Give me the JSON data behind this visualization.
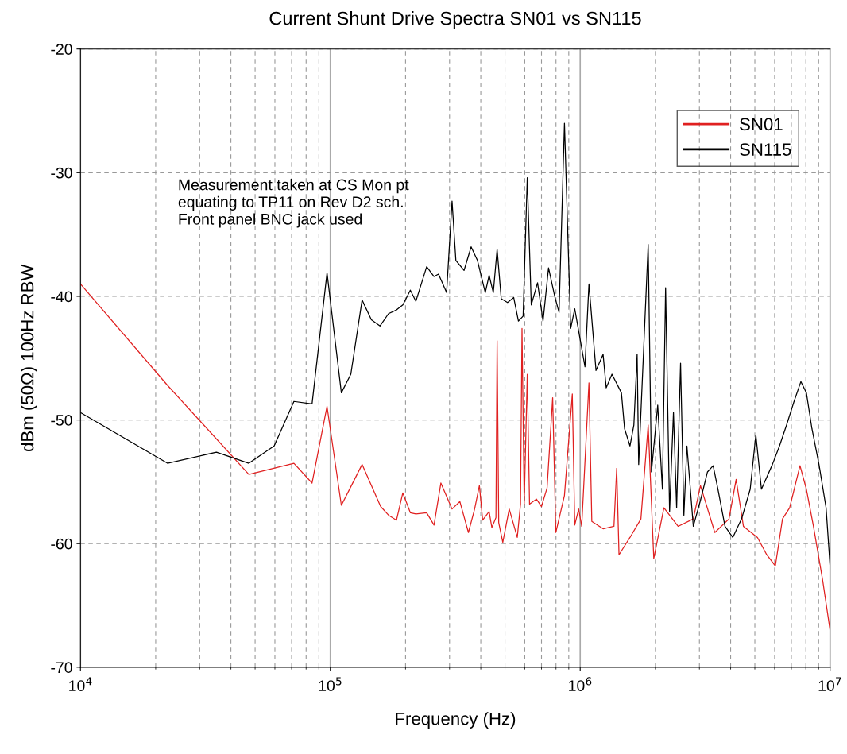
{
  "chart_data": {
    "type": "line",
    "title": "Current Shunt Drive Spectra SN01 vs SN115",
    "xlabel": "Frequency (Hz)",
    "ylabel": "dBm (50Ω) 100Hz RBW",
    "log": "x",
    "grid": true,
    "legend": "top right",
    "line_style": "solid",
    "marker": "none",
    "xlim": [
      10000,
      10000000
    ],
    "xticks": [
      {
        "value": 10000,
        "label": "10$^{4}$"
      },
      {
        "value": 100000,
        "label": "10$^{5}$"
      },
      {
        "value": 1000000,
        "label": "10$^{6}$"
      },
      {
        "value": 10000000,
        "label": "10$^{7}$"
      }
    ],
    "ylim": [
      -70,
      -20
    ],
    "yticks": [
      -70,
      -60,
      -50,
      -40,
      -30,
      -20
    ],
    "annotations": [
      "Measurement taken at CS Mon pt\nequating to TP11 on Rev D2 sch.\nFront panel BNC jack used"
    ],
    "series": [
      {
        "name": "SN01",
        "color": "#e02020",
        "x": [
          10000,
          22300,
          47200,
          71500,
          84500,
          97000,
          110700,
          120800,
          134000,
          159000,
          171000,
          184000,
          195000,
          209000,
          220000,
          243000,
          260000,
          277000,
          307000,
          330000,
          357000,
          378000,
          395000,
          407000,
          432000,
          443000,
          460000,
          465000,
          472000,
          490000,
          520000,
          560000,
          577000,
          585000,
          597000,
          614000,
          627000,
          668000,
          700000,
          737000,
          776000,
          799000,
          865000,
          930000,
          951000,
          986000,
          1014000,
          1084000,
          1113000,
          1235000,
          1365000,
          1400000,
          1430000,
          1582000,
          1750000,
          1871000,
          1970000,
          2163000,
          2465000,
          2836000,
          3029000,
          3458000,
          3940000,
          4208000,
          4500000,
          5123000,
          5580000,
          6040000,
          6450000,
          6890000,
          7580000,
          8040000,
          8580000,
          9330000,
          10000000
        ],
        "values": [
          -39.0,
          -47.2,
          -54.4,
          -53.5,
          -55.1,
          -48.9,
          -56.9,
          -55.4,
          -53.6,
          -57.0,
          -57.7,
          -58.1,
          -55.9,
          -57.5,
          -57.6,
          -57.5,
          -58.5,
          -55.1,
          -57.2,
          -56.6,
          -59.1,
          -57.2,
          -55.3,
          -58.1,
          -57.4,
          -58.7,
          -57.9,
          -43.6,
          -58.3,
          -59.9,
          -57.2,
          -59.5,
          -56.8,
          -42.6,
          -56.8,
          -46.3,
          -56.8,
          -56.4,
          -57.0,
          -55.5,
          -48.2,
          -59.1,
          -56.1,
          -47.9,
          -58.5,
          -57.2,
          -58.6,
          -47.0,
          -58.2,
          -58.8,
          -58.6,
          -53.9,
          -60.9,
          -59.5,
          -58.0,
          -50.4,
          -61.2,
          -57.1,
          -58.6,
          -58.0,
          -55.3,
          -59.1,
          -58.0,
          -54.8,
          -58.6,
          -59.5,
          -60.9,
          -61.8,
          -58.0,
          -57.1,
          -53.7,
          -55.6,
          -58.6,
          -62.9,
          -67.0
        ]
      },
      {
        "name": "SN115",
        "color": "#000000",
        "x": [
          10000,
          22300,
          35000,
          47200,
          59600,
          71500,
          84500,
          97000,
          110700,
          120800,
          134000,
          146000,
          158000,
          171000,
          184000,
          195000,
          209000,
          220000,
          243000,
          260000,
          271000,
          292000,
          307000,
          318000,
          343000,
          366000,
          388000,
          417000,
          432000,
          449000,
          465000,
          483000,
          512000,
          542000,
          566000,
          591000,
          614000,
          637000,
          675000,
          710000,
          747000,
          793000,
          823000,
          865000,
          916000,
          951000,
          1045000,
          1084000,
          1157000,
          1235000,
          1271000,
          1340000,
          1462000,
          1505000,
          1582000,
          1640000,
          1690000,
          1714000,
          1871000,
          1928000,
          2043000,
          2133000,
          2197000,
          2279000,
          2362000,
          2432000,
          2522000,
          2600000,
          2674000,
          2836000,
          3029000,
          3232000,
          3405000,
          3558000,
          3797000,
          4080000,
          4424000,
          4790000,
          5046000,
          5313000,
          5878000,
          6275000,
          6700000,
          7150000,
          7640000,
          8040000,
          8460000,
          9030000,
          9640000,
          10000000
        ],
        "values": [
          -49.4,
          -53.5,
          -52.6,
          -53.5,
          -52.1,
          -48.5,
          -48.7,
          -38.1,
          -47.8,
          -46.3,
          -40.3,
          -41.9,
          -42.4,
          -41.4,
          -41.1,
          -40.7,
          -39.5,
          -40.4,
          -37.6,
          -38.4,
          -38.2,
          -39.7,
          -32.3,
          -37.1,
          -37.9,
          -36.0,
          -37.1,
          -39.7,
          -38.3,
          -39.7,
          -36.2,
          -40.2,
          -40.5,
          -40.1,
          -42.0,
          -41.6,
          -30.4,
          -40.7,
          -38.9,
          -42.0,
          -37.7,
          -40.1,
          -41.3,
          -26.0,
          -42.6,
          -41.0,
          -45.7,
          -39.0,
          -46.0,
          -44.7,
          -47.4,
          -46.3,
          -47.8,
          -50.7,
          -52.1,
          -50.4,
          -44.7,
          -53.6,
          -35.8,
          -54.2,
          -48.8,
          -55.6,
          -39.3,
          -57.4,
          -49.4,
          -57.1,
          -45.4,
          -57.7,
          -52.1,
          -58.6,
          -56.5,
          -54.2,
          -53.7,
          -55.6,
          -58.6,
          -59.5,
          -58.0,
          -55.6,
          -51.2,
          -55.6,
          -53.6,
          -52.1,
          -50.4,
          -48.6,
          -46.9,
          -47.8,
          -50.7,
          -53.6,
          -57.1,
          -61.8
        ]
      }
    ]
  }
}
